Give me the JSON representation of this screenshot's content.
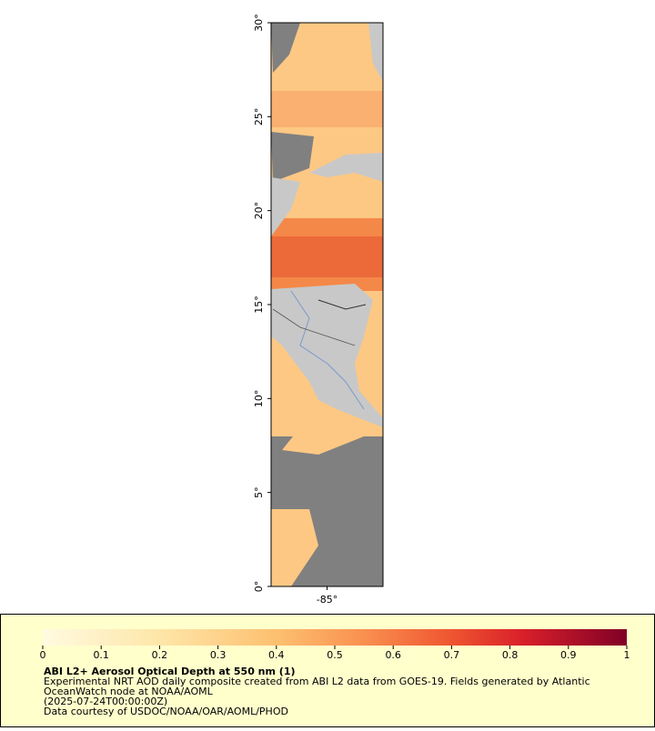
{
  "map": {
    "lat_range": [
      0,
      30
    ],
    "lon_range": [
      -88,
      -82
    ],
    "lat_ticks": [
      {
        "value": 0,
        "label": "0°"
      },
      {
        "value": 5,
        "label": "5°"
      },
      {
        "value": 10,
        "label": "10°"
      },
      {
        "value": 15,
        "label": "15°"
      },
      {
        "value": 20,
        "label": "20°"
      },
      {
        "value": 25,
        "label": "25°"
      },
      {
        "value": 30,
        "label": "30°"
      }
    ],
    "lon_ticks": [
      {
        "value": -85,
        "label": "-85°"
      }
    ]
  },
  "colorbar": {
    "range": [
      0,
      1
    ],
    "ticks": [
      0,
      0.1,
      0.2,
      0.3,
      0.4,
      0.5,
      0.6,
      0.7,
      0.8,
      0.9,
      1
    ]
  },
  "caption": {
    "title": "ABI L2+ Aerosol Optical Depth at 550 nm (1)",
    "lines": [
      "Experimental NRT AOD daily composite created from ABI L2 data from GOES-19. Fields generated by Atlantic",
      "OceanWatch node at NOAA/AOML",
      "(2025-07-24T00:00:00Z)",
      "Data courtesy of USDOC/NOAA/OAR/AOML/PHOD"
    ]
  }
}
